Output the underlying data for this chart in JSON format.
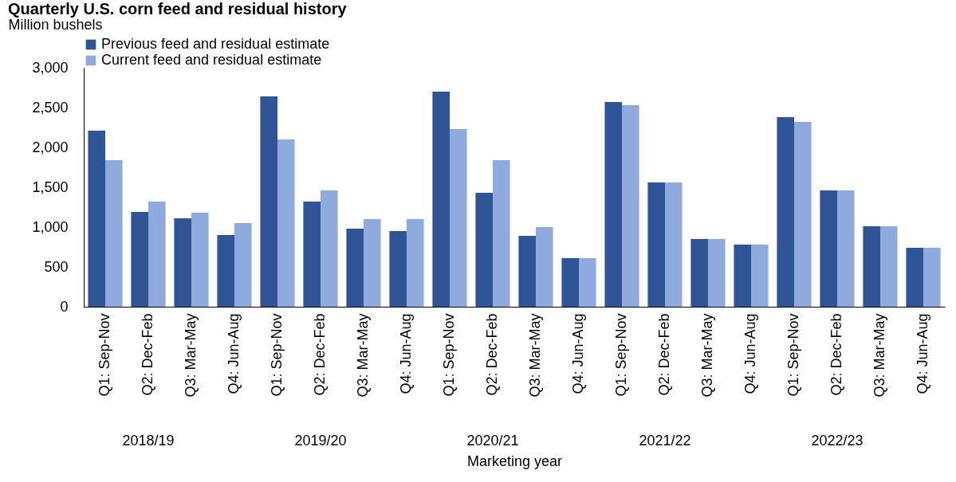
{
  "chart_data": {
    "type": "bar",
    "title": "Quarterly U.S. corn feed and residual history",
    "ylabel": "Million bushels",
    "xlabel": "Marketing year",
    "categories": [
      "Q1: Sep-Nov",
      "Q2: Dec-Feb",
      "Q3: Mar-May",
      "Q4: Jun-Aug",
      "Q1: Sep-Nov",
      "Q2: Dec-Feb",
      "Q3: Mar-May",
      "Q4: Jun-Aug",
      "Q1: Sep-Nov",
      "Q2: Dec-Feb",
      "Q3: Mar-May",
      "Q4: Jun-Aug",
      "Q1: Sep-Nov",
      "Q2: Dec-Feb",
      "Q3: Mar-May",
      "Q4: Jun-Aug",
      "Q1: Sep-Nov",
      "Q2: Dec-Feb",
      "Q3: Mar-May",
      "Q4: Jun-Aug"
    ],
    "series": [
      {
        "name": "Previous feed and residual estimate",
        "color": "#2f5597",
        "values": [
          2210,
          1190,
          1110,
          900,
          2640,
          1320,
          980,
          950,
          2700,
          1430,
          890,
          610,
          2570,
          1560,
          850,
          780,
          2380,
          1460,
          1010,
          740
        ]
      },
      {
        "name": "Current feed and residual estimate",
        "color": "#8faadc",
        "values": [
          1840,
          1320,
          1180,
          1050,
          2100,
          1460,
          1100,
          1100,
          2230,
          1840,
          1000,
          610,
          2530,
          1560,
          850,
          780,
          2320,
          1460,
          1010,
          740
        ]
      }
    ],
    "annotations": [
      "2018/19",
      "2019/20",
      "2020/21",
      "2021/22",
      "2022/23"
    ],
    "ylim": [
      0,
      3000
    ],
    "yticks": [
      0,
      500,
      {
        "value": 1000,
        "label": "1,000"
      },
      {
        "value": 1500,
        "label": "1,500"
      },
      {
        "value": 2000,
        "label": "2,000"
      },
      {
        "value": 2500,
        "label": "2,500"
      },
      {
        "value": 3000,
        "label": "3,000"
      }
    ],
    "grid": false,
    "legend": "top"
  }
}
